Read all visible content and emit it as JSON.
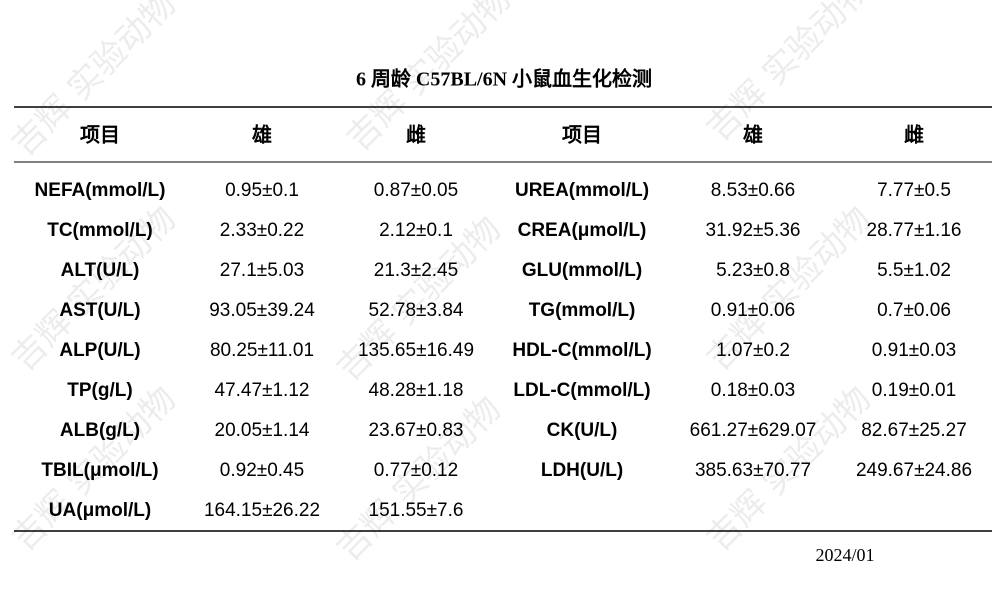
{
  "title": "6 周龄 C57BL/6N 小鼠血生化检测",
  "watermark": "吉辉 实验动物",
  "table": {
    "header": [
      "项目",
      "雄",
      "雌",
      "项目",
      "雄",
      "雌"
    ],
    "rows": [
      [
        "NEFA(mmol/L)",
        "0.95±0.1",
        "0.87±0.05",
        "UREA(mmol/L)",
        "8.53±0.66",
        "7.77±0.5"
      ],
      [
        "TC(mmol/L)",
        "2.33±0.22",
        "2.12±0.1",
        "CREA(μmol/L)",
        "31.92±5.36",
        "28.77±1.16"
      ],
      [
        "ALT(U/L)",
        "27.1±5.03",
        "21.3±2.45",
        "GLU(mmol/L)",
        "5.23±0.8",
        "5.5±1.02"
      ],
      [
        "AST(U/L)",
        "93.05±39.24",
        "52.78±3.84",
        "TG(mmol/L)",
        "0.91±0.06",
        "0.7±0.06"
      ],
      [
        "ALP(U/L)",
        "80.25±11.01",
        "135.65±16.49",
        "HDL-C(mmol/L)",
        "1.07±0.2",
        "0.91±0.03"
      ],
      [
        "TP(g/L)",
        "47.47±1.12",
        "48.28±1.18",
        "LDL-C(mmol/L)",
        "0.18±0.03",
        "0.19±0.01"
      ],
      [
        "ALB(g/L)",
        "20.05±1.14",
        "23.67±0.83",
        "CK(U/L)",
        "661.27±629.07",
        "82.67±25.27"
      ],
      [
        "TBIL(μmol/L)",
        "0.92±0.45",
        "0.77±0.12",
        "LDH(U/L)",
        "385.63±70.77",
        "249.67±24.86"
      ],
      [
        "UA(μmol/L)",
        "164.15±26.22",
        "151.55±7.6"
      ]
    ]
  },
  "footer": {
    "date": "2024/01"
  }
}
